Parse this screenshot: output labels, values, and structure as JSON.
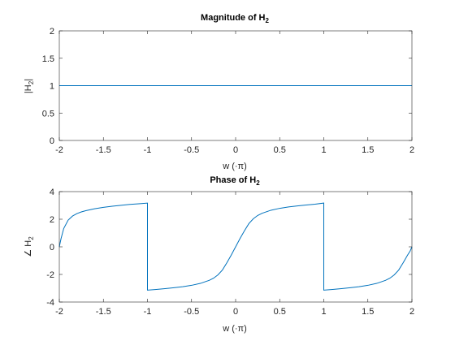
{
  "colors": {
    "series": "#0072BD",
    "axis": "#262626",
    "background": "#ffffff"
  },
  "chart_data": [
    {
      "type": "line",
      "title": "Magnitude of H",
      "title_sub": "2",
      "xlabel": "w (·π)",
      "ylabel": "|H",
      "ylabel_sub": "2",
      "ylabel_end": "|",
      "xlim": [
        -2,
        2
      ],
      "ylim": [
        0,
        2
      ],
      "xticks": [
        "-2",
        "-1.5",
        "-1",
        "-0.5",
        "0",
        "0.5",
        "1",
        "1.5",
        "2"
      ],
      "yticks": [
        "0",
        "0.5",
        "1",
        "1.5",
        "2"
      ],
      "grid": false,
      "series": [
        {
          "x": [
            -2,
            -1.5,
            -1,
            -0.5,
            0,
            0.5,
            1,
            1.5,
            2
          ],
          "y": [
            1,
            1,
            1,
            1,
            1,
            1,
            1,
            1,
            1
          ]
        }
      ]
    },
    {
      "type": "line",
      "title": "Phase of H",
      "title_sub": "2",
      "xlabel": "w (·π)",
      "ylabel": "∠ H",
      "ylabel_sub": "2",
      "xlim": [
        -2,
        2
      ],
      "ylim": [
        -4,
        4
      ],
      "xticks": [
        "-2",
        "-1.5",
        "-1",
        "-0.5",
        "0",
        "0.5",
        "1",
        "1.5",
        "2"
      ],
      "yticks": [
        "-4",
        "-2",
        "0",
        "2",
        "4"
      ],
      "grid": false,
      "series": [
        {
          "x": [
            -2,
            -1.99,
            -1.98,
            -1.95,
            -1.9,
            -1.85,
            -1.8,
            -1.75,
            -1.7,
            -1.6,
            -1.5,
            -1.4,
            -1.3,
            -1.2,
            -1.1,
            -1.0,
            -1.0,
            -0.9,
            -0.8,
            -0.7,
            -0.6,
            -0.5,
            -0.4,
            -0.3,
            -0.25,
            -0.2,
            -0.15,
            -0.1,
            -0.05,
            0,
            0.05,
            0.1,
            0.15,
            0.2,
            0.25,
            0.3,
            0.4,
            0.5,
            0.6,
            0.7,
            0.8,
            0.9,
            1.0,
            1.0,
            1.1,
            1.2,
            1.3,
            1.4,
            1.5,
            1.6,
            1.7,
            1.75,
            1.8,
            1.85,
            1.9,
            1.95,
            1.98,
            2.0
          ],
          "y": [
            0,
            0.31,
            0.6,
            1.33,
            1.93,
            2.23,
            2.41,
            2.53,
            2.62,
            2.76,
            2.86,
            2.94,
            3.01,
            3.07,
            3.12,
            3.17,
            -3.14,
            -3.09,
            -3.03,
            -2.96,
            -2.89,
            -2.79,
            -2.65,
            -2.43,
            -2.27,
            -2.03,
            -1.68,
            -1.16,
            -0.6,
            0,
            0.6,
            1.16,
            1.68,
            2.03,
            2.27,
            2.43,
            2.65,
            2.79,
            2.89,
            2.96,
            3.03,
            3.09,
            3.17,
            -3.14,
            -3.09,
            -3.03,
            -2.96,
            -2.89,
            -2.79,
            -2.65,
            -2.43,
            -2.27,
            -2.03,
            -1.68,
            -1.16,
            -0.6,
            -0.3,
            0
          ]
        }
      ]
    }
  ]
}
